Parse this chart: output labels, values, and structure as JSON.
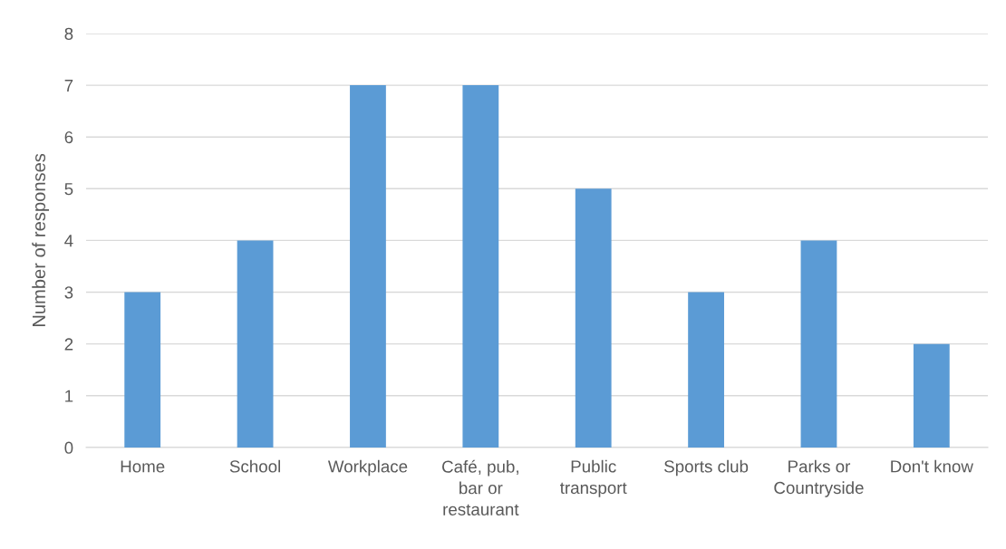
{
  "chart_data": {
    "type": "bar",
    "ylabel": "Number of responses",
    "categories": [
      "Home",
      "School",
      "Workplace",
      "Café, pub,\nbar or\nrestaurant",
      "Public\ntransport",
      "Sports club",
      "Parks or\nCountryside",
      "Don't know"
    ],
    "values": [
      3,
      4,
      7,
      7,
      5,
      3,
      4,
      2
    ],
    "color": "#5b9bd5",
    "ylim": [
      0,
      8
    ],
    "yticks": [
      0,
      1,
      2,
      3,
      4,
      5,
      6,
      7,
      8
    ],
    "grid": "y",
    "legend": false
  }
}
